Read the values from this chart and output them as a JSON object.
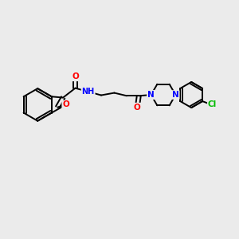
{
  "background_color": "#ebebeb",
  "bond_color": "#000000",
  "atom_colors": {
    "O": "#ff0000",
    "N": "#0000ff",
    "Cl": "#00bb00",
    "H": "#555555",
    "C": "#000000"
  },
  "figsize": [
    3.0,
    3.0
  ],
  "dpi": 100,
  "xlim": [
    0,
    12
  ],
  "ylim": [
    0,
    12
  ]
}
